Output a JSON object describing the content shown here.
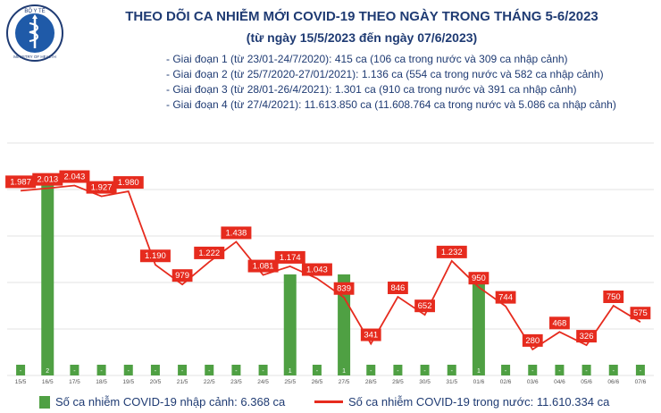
{
  "logo": {
    "top_text": "BỘ Y TẾ",
    "bottom_text": "MINISTRY OF HEALTH"
  },
  "header": {
    "title": "THEO DÕI CA NHIỄM MỚI COVID-19 THEO NGÀY TRONG THÁNG 5-6/2023",
    "subtitle": "(từ ngày 15/5/2023 đến ngày 07/6/2023)"
  },
  "notes": [
    "- Giai đoạn 1 (từ 23/01-24/7/2020): 415 ca (106 ca trong nước và 309 ca nhập cảnh)",
    "- Giai đoạn 2 (từ 25/7/2020-27/01/2021): 1.136 ca (554 ca trong nước và 582 ca nhập cảnh)",
    "- Giai đoạn 3 (từ 28/01-26/4/2021): 1.301 ca (910 ca trong nước và 391 ca nhập cảnh)",
    "- Giai đoạn 4 (từ 27/4/2021): 11.613.850 ca (11.608.764 ca trong nước và 5.086 ca nhập cảnh)"
  ],
  "legend": {
    "imported": "Số ca nhiễm COVID-19 nhập cảnh: 6.368 ca",
    "domestic": "Số ca nhiễm COVID-19 trong nước: 11.610.334 ca"
  },
  "chart_data": {
    "type": "bar+line",
    "categories": [
      "15/5",
      "16/5",
      "17/5",
      "18/5",
      "19/5",
      "20/5",
      "21/5",
      "22/5",
      "23/5",
      "24/5",
      "25/5",
      "26/5",
      "27/5",
      "28/5",
      "29/5",
      "30/5",
      "31/5",
      "01/6",
      "02/6",
      "03/6",
      "04/6",
      "05/6",
      "06/6",
      "07/6"
    ],
    "series": [
      {
        "name": "Số ca nhiễm COVID-19 nhập cảnh: 6.368 ca",
        "kind": "bar",
        "color": "#4fa043",
        "values": [
          0,
          2,
          0,
          0,
          0,
          0,
          0,
          0,
          0,
          0,
          1,
          0,
          1,
          0,
          0,
          0,
          0,
          1,
          0,
          0,
          0,
          0,
          0,
          0
        ],
        "labels": [
          "-",
          "2",
          "-",
          "-",
          "-",
          "-",
          "-",
          "-",
          "-",
          "-",
          "1",
          "-",
          "1",
          "-",
          "-",
          "-",
          "-",
          "1",
          "-",
          "-",
          "-",
          "-",
          "-",
          "-"
        ]
      },
      {
        "name": "Số ca nhiễm COVID-19 trong nước: 11.610.334 ca",
        "kind": "line",
        "color": "#e62b1e",
        "values": [
          1987,
          2013,
          2043,
          1927,
          1980,
          1190,
          979,
          1222,
          1438,
          1081,
          1174,
          1043,
          839,
          341,
          846,
          652,
          1232,
          950,
          744,
          280,
          468,
          326,
          750,
          575
        ],
        "labels": [
          "1.987",
          "2.013",
          "2.043",
          "1.927",
          "1.980",
          "1.190",
          "979",
          "1.222",
          "1.438",
          "1.081",
          "1.174",
          "1.043",
          "839",
          "341",
          "846",
          "652",
          "1.232",
          "950",
          "744",
          "280",
          "468",
          "326",
          "750",
          "575"
        ]
      }
    ],
    "grid": true,
    "bar_scale_max": 2.3,
    "line_scale_max": 2500
  }
}
